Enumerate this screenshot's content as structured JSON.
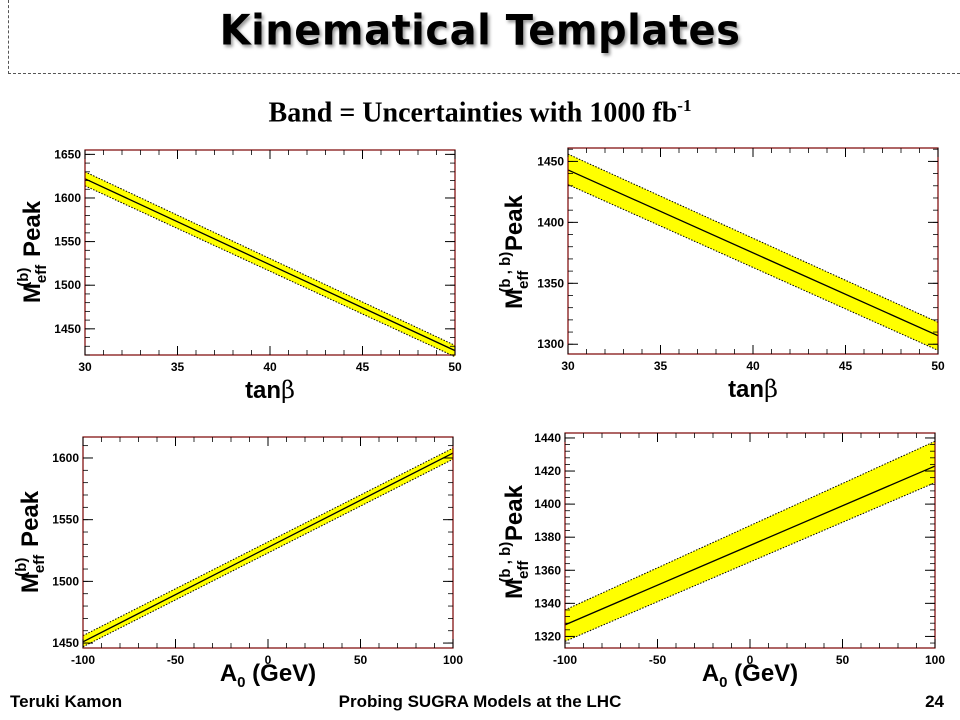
{
  "slide": {
    "title": "Kinematical Templates",
    "subtitle_main": "Band = Uncertainties with 1000 fb",
    "subtitle_sup": "-1",
    "footer_left": "Teruki Kamon",
    "footer_center": "Probing SUGRA Models at the LHC",
    "page_number": "24"
  },
  "colors": {
    "band": "#ffff00",
    "line": "#000000",
    "frame": "#7a0000"
  },
  "chart_data": [
    {
      "type": "line",
      "xlabel_main": "tan",
      "xlabel_greek": "β",
      "ylabel_main": "M",
      "ylabel_sub": "eff",
      "ylabel_sup": "(b)",
      "ylabel_word": "Peak",
      "xlim": [
        30,
        50
      ],
      "ylim": [
        1420,
        1655
      ],
      "xticks": [
        30,
        35,
        40,
        45,
        50
      ],
      "yticks": [
        1450,
        1500,
        1550,
        1600,
        1650
      ],
      "x": [
        30,
        50
      ],
      "center": [
        1622,
        1425
      ],
      "upper": [
        1630,
        1431
      ],
      "lower": [
        1614,
        1418
      ]
    },
    {
      "type": "line",
      "xlabel_main": "tan",
      "xlabel_greek": "β",
      "ylabel_main": "M",
      "ylabel_sub": "eff",
      "ylabel_sup": "(b , b)",
      "ylabel_word": "Peak",
      "xlim": [
        30,
        50
      ],
      "ylim": [
        1292,
        1461
      ],
      "xticks": [
        30,
        35,
        40,
        45,
        50
      ],
      "yticks": [
        1300,
        1350,
        1400,
        1450
      ],
      "x": [
        30,
        50
      ],
      "center": [
        1443,
        1307
      ],
      "upper": [
        1456,
        1318
      ],
      "lower": [
        1431,
        1295
      ]
    },
    {
      "type": "line",
      "xlabel_main": "A",
      "xlabel_sub": "0",
      "xlabel_rest": " (GeV)",
      "ylabel_main": "M",
      "ylabel_sub": "eff",
      "ylabel_sup": "(b)",
      "ylabel_word": "Peak",
      "xlim": [
        -100,
        100
      ],
      "ylim": [
        1446,
        1617
      ],
      "xticks": [
        -100,
        -50,
        0,
        50,
        100
      ],
      "yticks": [
        1450,
        1500,
        1550,
        1600
      ],
      "x": [
        -100,
        100
      ],
      "center": [
        1451,
        1604
      ],
      "upper": [
        1456,
        1608
      ],
      "lower": [
        1447,
        1599
      ]
    },
    {
      "type": "line",
      "xlabel_main": "A",
      "xlabel_sub": "0",
      "xlabel_rest": " (GeV)",
      "ylabel_main": "M",
      "ylabel_sub": "eff",
      "ylabel_sup": "(b , b)",
      "ylabel_word": "Peak",
      "xlim": [
        -100,
        100
      ],
      "ylim": [
        1313,
        1443
      ],
      "xticks": [
        -100,
        -50,
        0,
        50,
        100
      ],
      "yticks": [
        1320,
        1340,
        1360,
        1380,
        1400,
        1420,
        1440
      ],
      "x": [
        -100,
        100
      ],
      "center": [
        1327,
        1423
      ],
      "upper": [
        1336,
        1438
      ],
      "lower": [
        1317,
        1413
      ]
    }
  ]
}
